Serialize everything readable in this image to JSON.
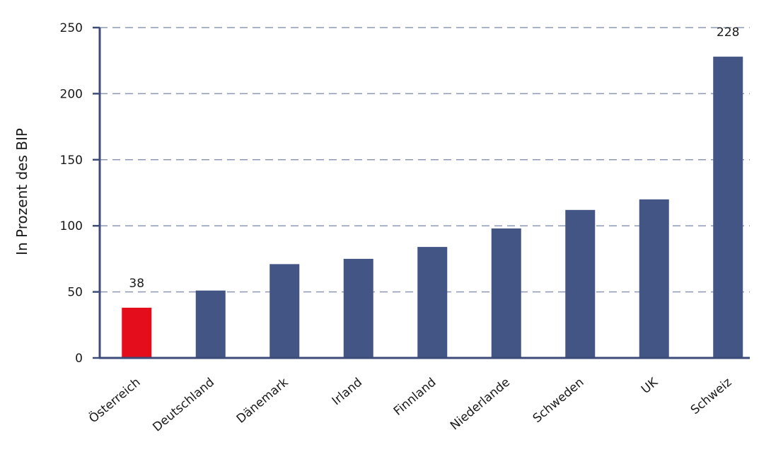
{
  "chart_data": {
    "type": "bar",
    "title": "",
    "xlabel": "",
    "ylabel": "In Prozent des BIP",
    "ylim": [
      0,
      250
    ],
    "yticks": [
      0,
      50,
      100,
      150,
      200,
      250
    ],
    "grid": "horizontal-dashed",
    "legend": "none",
    "categories": [
      "Österreich",
      "Deutschland",
      "Dänemark",
      "Irland",
      "Finnland",
      "Niederlande",
      "Schweden",
      "UK",
      "Schweiz"
    ],
    "values": [
      38,
      51,
      71,
      75,
      84,
      98,
      112,
      120,
      228
    ],
    "data_labels": [
      "38",
      "",
      "",
      "",
      "",
      "",
      "",
      "",
      "228"
    ],
    "colors": {
      "default_bar": "#435585",
      "highlight_bar": "#e30d1b",
      "axis": "#3d4b79",
      "grid": "#8e98b5"
    },
    "highlight_index": 0
  }
}
